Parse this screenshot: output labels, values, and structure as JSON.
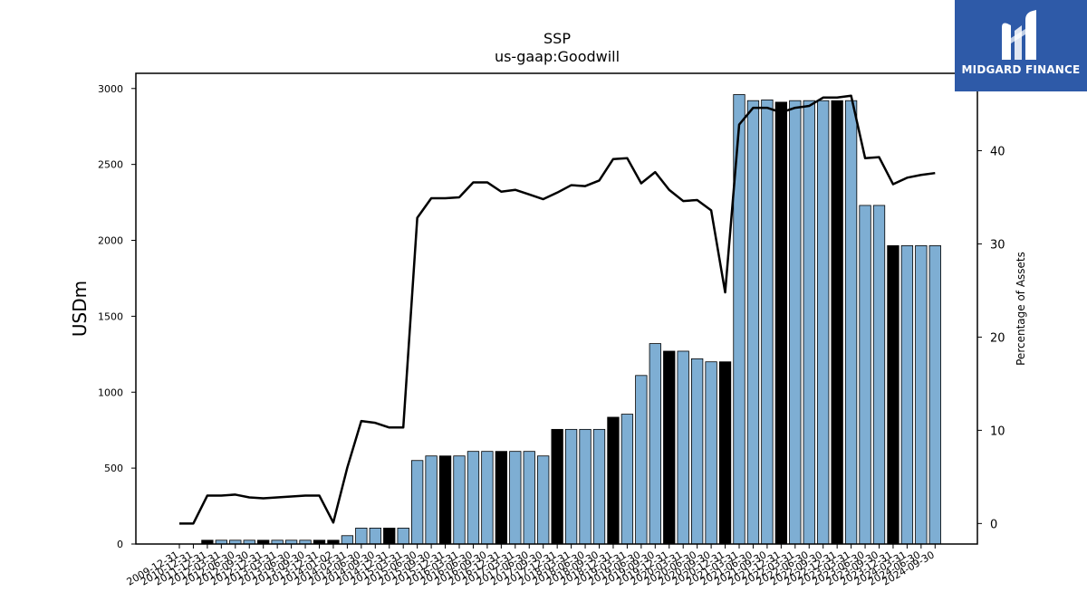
{
  "chart_data": {
    "type": "bar",
    "title": "SSP",
    "subtitle": "us-gaap:Goodwill",
    "ylabel": "USDm",
    "y2label": "Percentage of Assets",
    "ylim": [
      0,
      3100
    ],
    "y2lim": [
      -2.2,
      48.3
    ],
    "yticks": [
      0,
      500,
      1000,
      1500,
      2000,
      2500,
      3000
    ],
    "y2ticks": [
      0,
      10,
      20,
      30,
      40
    ],
    "grid": false,
    "categories": [
      "2009-12-31",
      "2010-12-31",
      "2011-12-31",
      "2012-03-31",
      "2012-06-30",
      "2012-09-30",
      "2012-12-31",
      "2013-03-31",
      "2013-06-30",
      "2013-09-30",
      "2013-12-31",
      "2014-01-02",
      "2014-03-31",
      "2014-06-30",
      "2014-09-30",
      "2014-12-31",
      "2015-03-31",
      "2015-06-30",
      "2015-09-30",
      "2015-12-31",
      "2016-03-31",
      "2016-06-30",
      "2016-09-30",
      "2016-12-31",
      "2017-03-31",
      "2017-06-30",
      "2017-09-30",
      "2017-12-31",
      "2018-03-31",
      "2018-06-30",
      "2018-09-30",
      "2018-12-31",
      "2019-03-31",
      "2019-06-30",
      "2019-09-30",
      "2019-12-31",
      "2020-03-31",
      "2020-06-30",
      "2020-09-30",
      "2020-12-31",
      "2021-03-31",
      "2021-06-30",
      "2021-09-30",
      "2021-12-31",
      "2022-03-31",
      "2022-06-30",
      "2022-09-30",
      "2022-12-31",
      "2023-03-31",
      "2023-06-30",
      "2023-09-30",
      "2023-12-31",
      "2024-03-31",
      "2024-06-30",
      "2024-09-30"
    ],
    "series": [
      {
        "kind": "bar",
        "axis": "left",
        "values": [
          0,
          0,
          25,
          25,
          25,
          25,
          25,
          25,
          25,
          25,
          25,
          25,
          55,
          105,
          105,
          105,
          105,
          550,
          580,
          580,
          580,
          610,
          610,
          610,
          610,
          610,
          580,
          755,
          755,
          755,
          755,
          835,
          855,
          1110,
          1320,
          1270,
          1270,
          1220,
          1200,
          1200,
          2960,
          2920,
          2925,
          2910,
          2920,
          2920,
          2920,
          2920,
          2920,
          2230,
          2230,
          1965,
          1965,
          1965,
          1965
        ],
        "highlight": [
          false,
          false,
          true,
          false,
          false,
          false,
          true,
          false,
          false,
          false,
          true,
          true,
          false,
          false,
          false,
          true,
          false,
          false,
          false,
          true,
          false,
          false,
          false,
          true,
          false,
          false,
          false,
          true,
          false,
          false,
          false,
          true,
          false,
          false,
          false,
          true,
          false,
          false,
          false,
          true,
          false,
          false,
          false,
          true,
          false,
          false,
          false,
          true,
          false,
          false,
          false,
          true,
          false,
          false,
          false
        ],
        "color": "#7eaed3",
        "highlight_color": "#000000"
      },
      {
        "kind": "line",
        "axis": "right",
        "values": [
          0,
          0,
          3,
          3,
          3.1,
          2.8,
          2.7,
          2.8,
          2.9,
          3,
          3,
          0.1,
          6,
          11,
          10.8,
          10.3,
          10.3,
          32.8,
          34.9,
          34.9,
          35,
          36.6,
          36.6,
          35.6,
          35.8,
          35.3,
          34.8,
          35.5,
          36.3,
          36.2,
          36.8,
          39.1,
          39.2,
          36.5,
          37.7,
          35.8,
          34.6,
          34.7,
          33.6,
          24.8,
          42.8,
          44.6,
          44.6,
          44.1,
          44.6,
          44.8,
          45.7,
          45.7,
          45.9,
          39.2,
          39.3,
          36.4,
          37.1,
          37.4,
          37.6
        ],
        "color": "#000000"
      }
    ]
  },
  "logo": {
    "text": "MIDGARD FINANCE",
    "color": "#2e5aa8"
  }
}
